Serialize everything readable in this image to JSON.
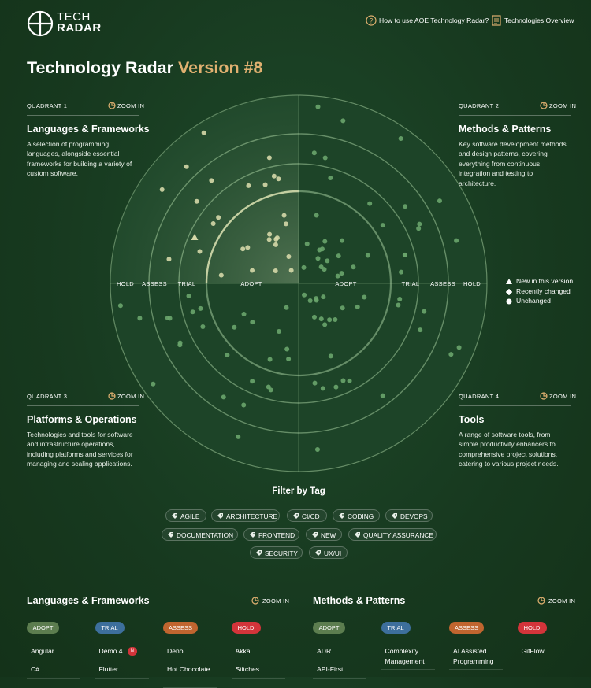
{
  "header": {
    "logo_top": "TECH",
    "logo_bottom": "RADAR",
    "nav": [
      "How to use AOE Technology Radar?",
      "Technologies Overview"
    ]
  },
  "title": "Technology Radar",
  "title_version": "Version #8",
  "quadrants": [
    {
      "label": "QUADRANT 1",
      "zoom": "ZOOM IN",
      "title": "Languages & Frameworks",
      "description": "A selection of programming languages, alongside essential frameworks for building a variety of custom software."
    },
    {
      "label": "QUADRANT 2",
      "zoom": "ZOOM IN",
      "title": "Methods & Patterns",
      "description": "Key software development methods and design patterns, covering everything from continuous integration and testing to architecture."
    },
    {
      "label": "QUADRANT 3",
      "zoom": "ZOOM IN",
      "title": "Platforms & Operations",
      "description": "Technologies and tools for software and infrastructure operations, including platforms and services for managing and scaling applications."
    },
    {
      "label": "QUADRANT 4",
      "zoom": "ZOOM IN",
      "title": "Tools",
      "description": "A range of software tools, from simple productivity enhancers to comprehensive project solutions, catering to various project needs."
    }
  ],
  "rings": [
    "HOLD",
    "ASSESS",
    "TRIAL",
    "ADOPT"
  ],
  "legend": [
    "New in this version",
    "Recently changed",
    "Unchanged"
  ],
  "filter": {
    "title": "Filter by Tag",
    "tags": [
      "AGILE",
      "ARCHITECTURE",
      "CI/CD",
      "CODING",
      "DEVOPS",
      "DOCUMENTATION",
      "FRONTEND",
      "NEW",
      "QUALITY ASSURANCE",
      "SECURITY",
      "UX/UI"
    ]
  },
  "sections": [
    {
      "title": "Languages & Frameworks",
      "zoom": "ZOOM IN",
      "columns": [
        {
          "ring": "ADOPT",
          "items": [
            {
              "name": "Angular"
            },
            {
              "name": "C#"
            }
          ]
        },
        {
          "ring": "TRIAL",
          "items": [
            {
              "name": "Demo 4",
              "badge": "N"
            },
            {
              "name": "Flutter"
            }
          ]
        },
        {
          "ring": "ASSESS",
          "items": [
            {
              "name": "Deno"
            },
            {
              "name": "Hot Chocolate"
            }
          ]
        },
        {
          "ring": "HOLD",
          "items": [
            {
              "name": "Akka"
            },
            {
              "name": "Stitches"
            }
          ]
        }
      ]
    },
    {
      "title": "Methods & Patterns",
      "zoom": "ZOOM IN",
      "columns": [
        {
          "ring": "ADOPT",
          "items": [
            {
              "name": "ADR"
            },
            {
              "name": "API-First"
            }
          ]
        },
        {
          "ring": "TRIAL",
          "items": [
            {
              "name": "Complexity Management"
            }
          ]
        },
        {
          "ring": "ASSESS",
          "items": [
            {
              "name": "AI Assisted Programming"
            }
          ]
        },
        {
          "ring": "HOLD",
          "items": [
            {
              "name": "GitFlow"
            }
          ]
        }
      ]
    }
  ]
}
